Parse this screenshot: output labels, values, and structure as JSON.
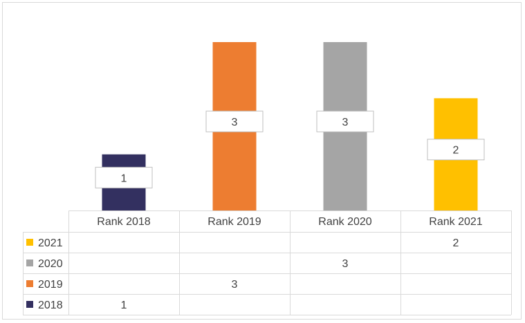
{
  "chart_data": {
    "type": "bar",
    "categories": [
      "Rank 2018",
      "Rank 2019",
      "Rank 2020",
      "Rank 2021"
    ],
    "series": [
      {
        "name": "2021",
        "color": "#ffc000",
        "values": [
          null,
          null,
          null,
          2
        ]
      },
      {
        "name": "2020",
        "color": "#a5a5a5",
        "values": [
          null,
          null,
          3,
          null
        ]
      },
      {
        "name": "2019",
        "color": "#ed7d31",
        "values": [
          null,
          3,
          null,
          null
        ]
      },
      {
        "name": "2018",
        "color": "#333060",
        "values": [
          1,
          null,
          null,
          null
        ]
      }
    ],
    "ylim": [
      0,
      3
    ],
    "data_table": true,
    "legend": "data-table",
    "grid": false
  }
}
